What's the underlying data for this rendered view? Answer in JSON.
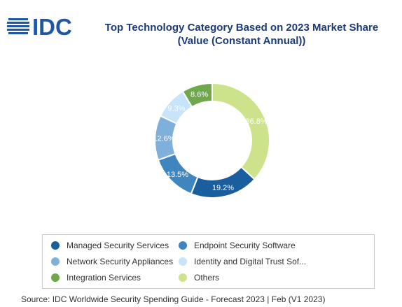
{
  "logo": {
    "text": "IDC",
    "icon": "idc-globe-logo",
    "color": "#1f57a8"
  },
  "title_line1": "Top Technology Category Based on 2023 Market Share",
  "title_line2": "(Value (Constant Annual))",
  "source": "Source: IDC Worldwide Security Spending Guide - Forecast 2023 | Feb (V1 2023)",
  "chart_data": {
    "type": "pie",
    "title": "Top Technology Category Based on 2023 Market Share (Value (Constant Annual))",
    "donut": true,
    "legend_position": "bottom",
    "categories": [
      "Managed Security Services",
      "Endpoint Security Software",
      "Network Security Appliances",
      "Identity and Digital Trust Sof...",
      "Integration Services",
      "Others"
    ],
    "values": [
      19.2,
      13.5,
      12.6,
      9.3,
      8.6,
      36.8
    ],
    "labels": [
      "19.2%",
      "13.5%",
      "12.6%",
      "9.3%",
      "8.6%",
      "36.8%"
    ],
    "colors": [
      "#1a5e9e",
      "#3f86be",
      "#7fb0dc",
      "#c7e4fa",
      "#6fa84c",
      "#cce38b"
    ],
    "label_colors": [
      "#ffffff",
      "#ffffff",
      "#ffffff",
      "#ffffff",
      "#ffffff",
      "#ffffff"
    ]
  }
}
